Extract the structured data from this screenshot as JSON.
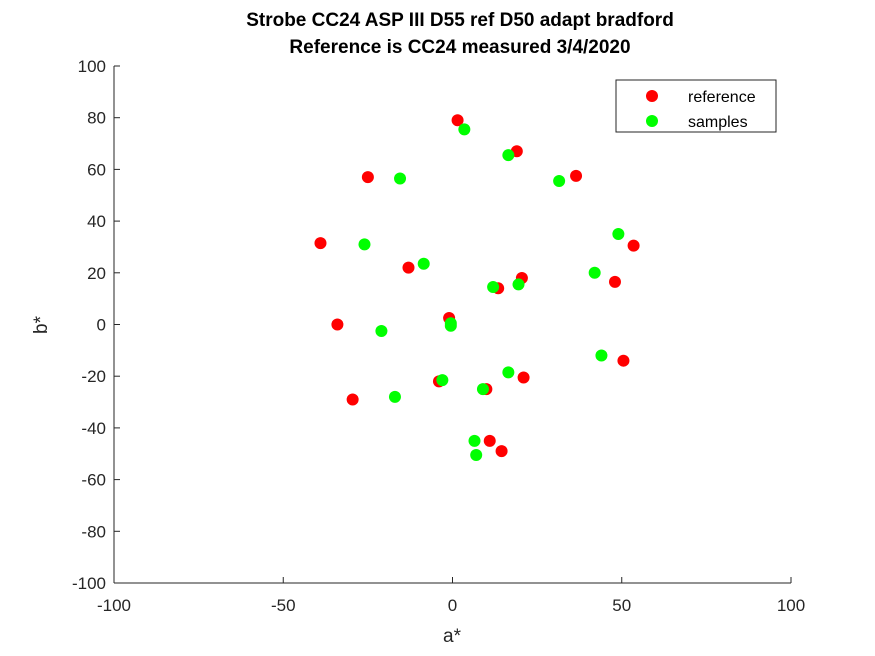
{
  "chart_data": {
    "type": "scatter",
    "title": "Strobe CC24 ASP III D55 ref D50 adapt bradford",
    "subtitle": "Reference is CC24 measured 3/4/2020",
    "xlabel": "a*",
    "ylabel": "b*",
    "xlim": [
      -100,
      100
    ],
    "ylim": [
      -100,
      100
    ],
    "xticks": [
      -100,
      -50,
      0,
      50,
      100
    ],
    "yticks": [
      -100,
      -80,
      -60,
      -40,
      -20,
      0,
      20,
      40,
      60,
      80,
      100
    ],
    "grid": false,
    "legend_position": "top-right",
    "series": [
      {
        "name": "reference",
        "color": "#ff0000",
        "points": [
          [
            1.5,
            79
          ],
          [
            19,
            67
          ],
          [
            -25,
            57
          ],
          [
            36.5,
            57.5
          ],
          [
            -39,
            31.5
          ],
          [
            53.5,
            30.5
          ],
          [
            -13,
            22
          ],
          [
            20.5,
            18
          ],
          [
            13.5,
            14
          ],
          [
            48,
            16.5
          ],
          [
            -34,
            0
          ],
          [
            -1,
            2.5
          ],
          [
            50.5,
            -14
          ],
          [
            21,
            -20.5
          ],
          [
            -4,
            -22
          ],
          [
            10,
            -25
          ],
          [
            -29.5,
            -29
          ],
          [
            11,
            -45
          ],
          [
            14.5,
            -49
          ]
        ]
      },
      {
        "name": "samples",
        "color": "#00ff00",
        "points": [
          [
            3.5,
            75.5
          ],
          [
            16.5,
            65.5
          ],
          [
            -15.5,
            56.5
          ],
          [
            31.5,
            55.5
          ],
          [
            -26,
            31
          ],
          [
            49,
            35
          ],
          [
            -8.5,
            23.5
          ],
          [
            12,
            14.5
          ],
          [
            19.5,
            15.5
          ],
          [
            42,
            20
          ],
          [
            -21,
            -2.5
          ],
          [
            -0.5,
            0.5
          ],
          [
            -0.5,
            -0.5
          ],
          [
            44,
            -12
          ],
          [
            16.5,
            -18.5
          ],
          [
            -3,
            -21.5
          ],
          [
            9,
            -25
          ],
          [
            -17,
            -28
          ],
          [
            6.5,
            -45
          ],
          [
            7,
            -50.5
          ]
        ]
      }
    ]
  }
}
